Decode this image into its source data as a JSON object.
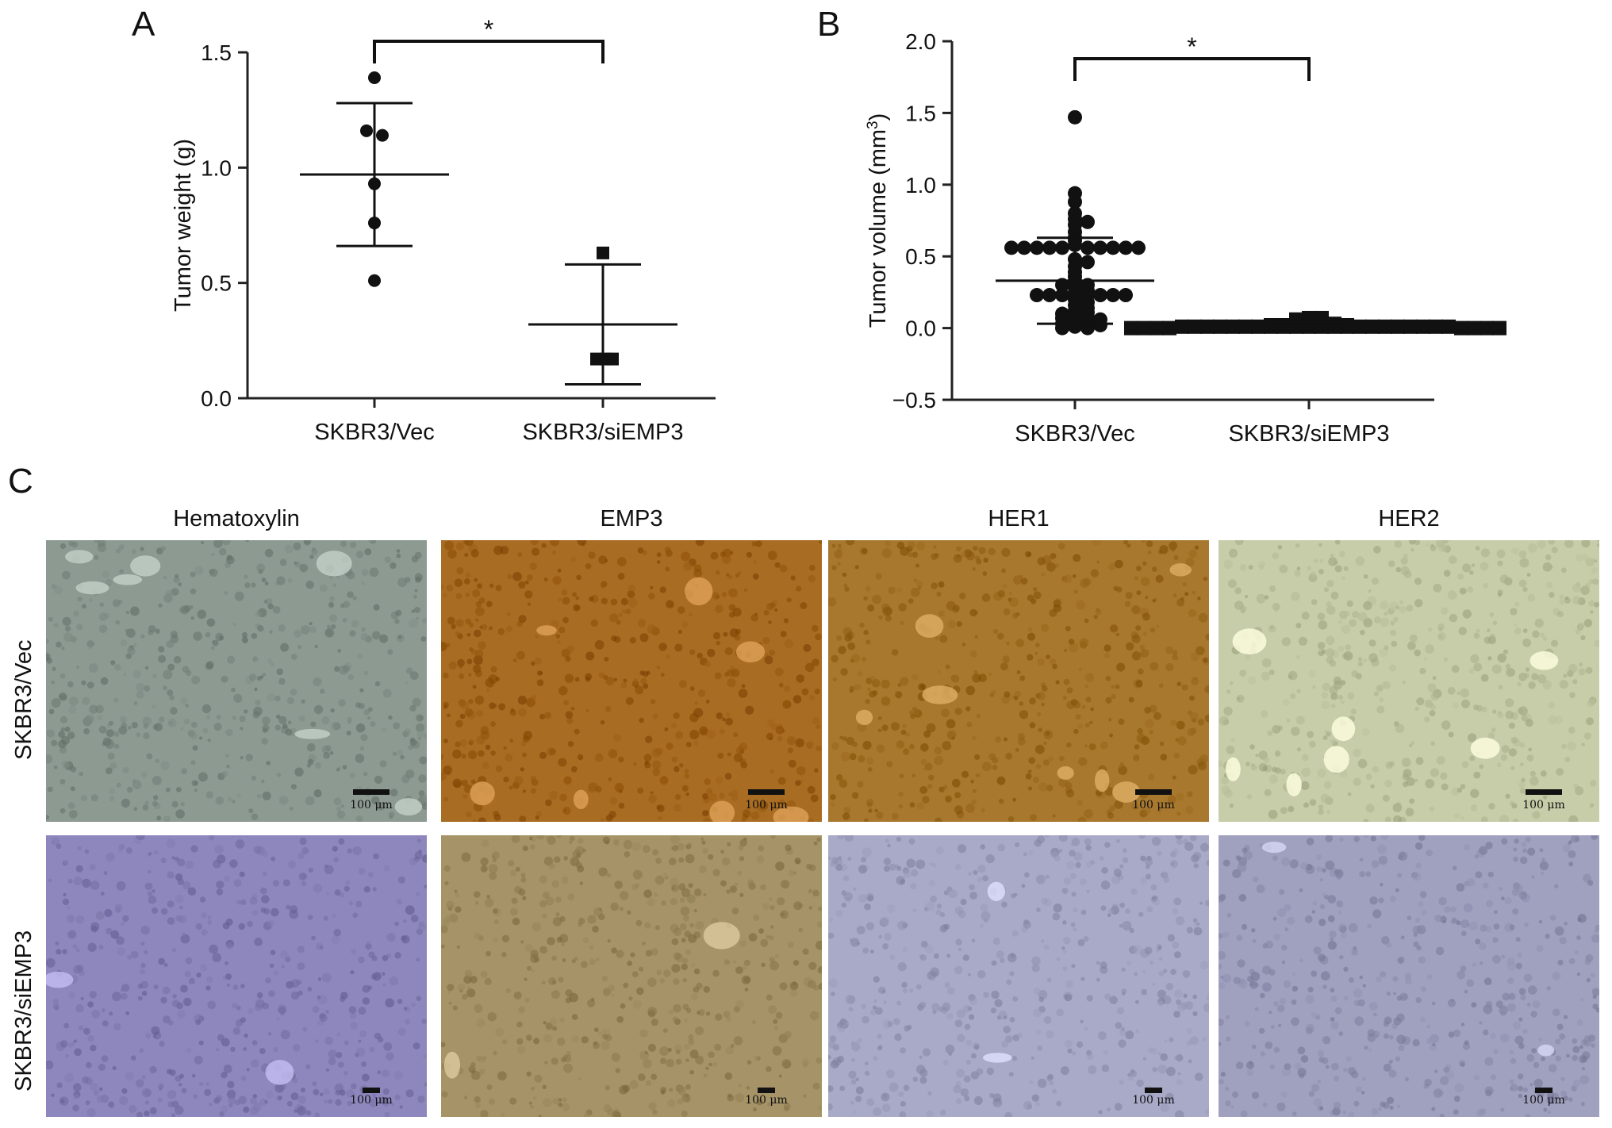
{
  "panels": {
    "a": {
      "letter": "A"
    },
    "b": {
      "letter": "B"
    },
    "c": {
      "letter": "C"
    }
  },
  "chart_data": [
    {
      "panel": "A",
      "type": "scatter",
      "ylabel": "Tumor weight (g)",
      "categories": [
        "SKBR3/Vec",
        "SKBR3/siEMP3"
      ],
      "ylim": [
        0,
        1.5
      ],
      "yticks": [
        "0.0",
        "0.5",
        "1.0",
        "1.5"
      ],
      "series": [
        {
          "points": [
            1.39,
            1.16,
            1.14,
            0.93,
            0.76,
            0.51
          ],
          "mean": 0.97,
          "sd_low": 0.66,
          "sd_high": 1.28,
          "marker": "circle"
        },
        {
          "points": [
            0.63,
            0.17,
            0.17,
            0.17
          ],
          "mean": 0.32,
          "sd_low": 0.06,
          "sd_high": 0.58,
          "marker": "square"
        }
      ],
      "significance": "*"
    },
    {
      "panel": "B",
      "type": "scatter",
      "ylabel": "Tumor volume (mm",
      "ylabel_sup": "3",
      "ylabel_end": ")",
      "categories": [
        "SKBR3/Vec",
        "SKBR3/siEMP3"
      ],
      "ylim": [
        -0.5,
        2.0
      ],
      "yticks": [
        "−0.5",
        "0.0",
        "0.5",
        "1.0",
        "1.5",
        "2.0"
      ],
      "series": [
        {
          "points": [
            1.47,
            0.94,
            0.88,
            0.8,
            0.76,
            0.74,
            0.72,
            0.67,
            0.63,
            0.61,
            0.58,
            0.56,
            0.56,
            0.56,
            0.56,
            0.56,
            0.56,
            0.56,
            0.56,
            0.56,
            0.56,
            0.48,
            0.46,
            0.43,
            0.39,
            0.36,
            0.33,
            0.3,
            0.3,
            0.28,
            0.26,
            0.24,
            0.23,
            0.23,
            0.23,
            0.23,
            0.23,
            0.23,
            0.23,
            0.2,
            0.18,
            0.16,
            0.14,
            0.12,
            0.11,
            0.1,
            0.09,
            0.08,
            0.07,
            0.06,
            0.05,
            0.04,
            0.03,
            0.02,
            0.01,
            0.0,
            0.0
          ],
          "mean": 0.33,
          "sd_low": 0.03,
          "sd_high": 0.63,
          "marker": "circle"
        },
        {
          "points": [
            0.07,
            0.07,
            0.06,
            0.05,
            0.04,
            0.03,
            0.03,
            0.02,
            0.02,
            0.02,
            0.01,
            0.01,
            0.01,
            0.01,
            0.01,
            0.01,
            0.01,
            0.01,
            0.01,
            0.01,
            0.01,
            0.01,
            0.01,
            0.01,
            0.01,
            0.01,
            0.01,
            0.01,
            0.01,
            0.01,
            0.01,
            0.01,
            0.0,
            0.0,
            0.0,
            0.0,
            0.0,
            0.0,
            0.0,
            0.0
          ],
          "mean": 0.02,
          "sd_low": 0.0,
          "sd_high": 0.04,
          "marker": "square"
        }
      ],
      "significance": "*"
    }
  ],
  "histology": {
    "columns": [
      "Hematoxylin",
      "EMP3",
      "HER1",
      "HER2"
    ],
    "rows": [
      "SKBR3/Vec",
      "SKBR3/siEMP3"
    ],
    "scale_bar": "100 μm",
    "tile_colors": {
      "hema_vec": "#8c9a92",
      "emp3_vec": "#a86c22",
      "her1_vec": "#a8782e",
      "her2_vec": "#c7cda8",
      "hema_si": "#8e87bd",
      "emp3_si": "#a69468",
      "her1_si": "#a9aac8",
      "her2_si": "#9fa1bf"
    }
  }
}
